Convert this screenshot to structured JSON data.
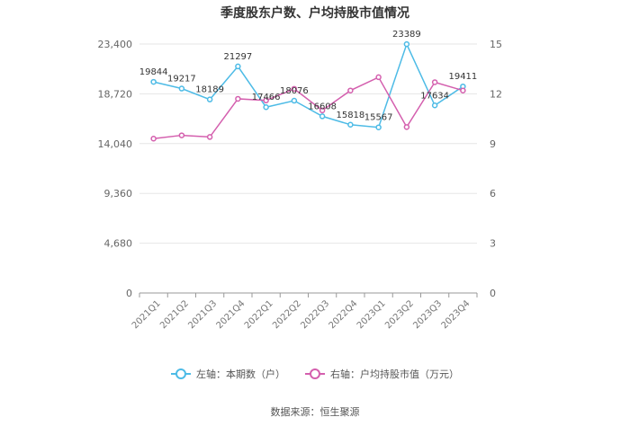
{
  "title": "季度股东户数、户均持股市值情况",
  "source": "数据来源：恒生聚源",
  "colors": {
    "left": "#4dbbe6",
    "right": "#d45fae",
    "grid": "#e6e6e6",
    "axis": "#999999"
  },
  "chart_data": {
    "type": "line",
    "title": "季度股东户数、户均持股市值情况",
    "categories": [
      "2021Q1",
      "2021Q2",
      "2021Q3",
      "2021Q4",
      "2022Q1",
      "2022Q2",
      "2022Q3",
      "2022Q4",
      "2023Q1",
      "2023Q2",
      "2023Q3",
      "2023Q4"
    ],
    "left_axis": {
      "min": 0,
      "max": 23400,
      "ticks": [
        "0",
        "4,680",
        "9,360",
        "14,040",
        "18,720",
        "23,400"
      ]
    },
    "right_axis": {
      "min": 0,
      "max": 15,
      "ticks": [
        "0",
        "3",
        "6",
        "9",
        "12",
        "15"
      ]
    },
    "grid": true,
    "legend_position": "bottom",
    "series": [
      {
        "name": "左轴：本期数（户）",
        "axis": "left",
        "show_labels": true,
        "values": [
          19844,
          19217,
          18189,
          21297,
          17466,
          18076,
          16608,
          15818,
          15567,
          23389,
          17634,
          19411
        ],
        "labels": [
          "19844",
          "19217",
          "18189",
          "21297",
          "17466",
          "18076",
          "16608",
          "15818",
          "15567",
          "23389",
          "17634",
          "19411"
        ]
      },
      {
        "name": "右轴：户均持股市值（万元）",
        "axis": "right",
        "show_labels": false,
        "values": [
          9.3,
          9.5,
          9.4,
          11.7,
          11.6,
          12.3,
          11.0,
          12.2,
          13.0,
          10.0,
          12.7,
          12.2
        ]
      }
    ]
  }
}
